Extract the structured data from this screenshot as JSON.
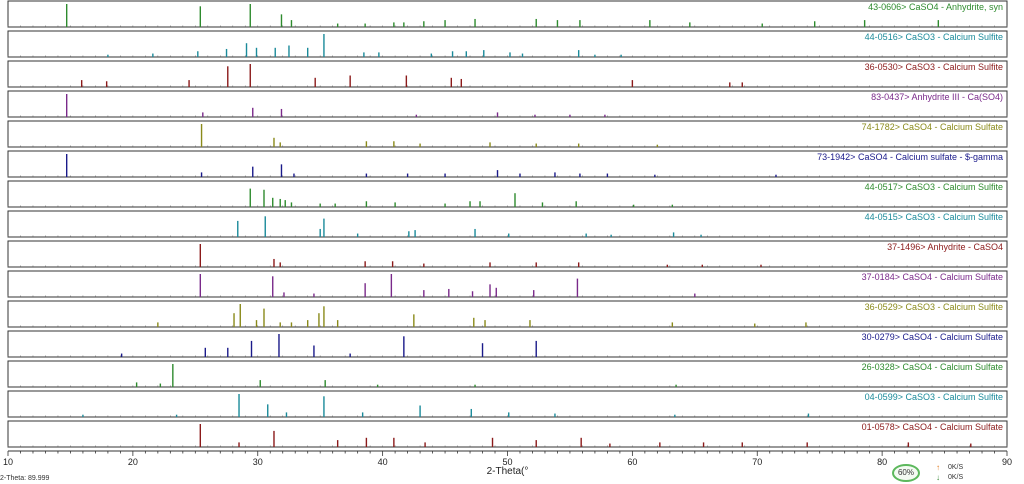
{
  "chart_data": {
    "type": "bar",
    "xlabel": "2-Theta(°",
    "xlim": [
      10,
      90
    ],
    "xticks": [
      10,
      20,
      30,
      40,
      50,
      60,
      70,
      80,
      90
    ],
    "panels": [
      {
        "label": "43-0606> CaSO4 - Anhydrite, syn",
        "color": "#2e8b2e",
        "peaks": [
          [
            14.7,
            1.0
          ],
          [
            25.4,
            0.9
          ],
          [
            29.4,
            1.0
          ],
          [
            31.9,
            0.55
          ],
          [
            32.7,
            0.3
          ],
          [
            36.4,
            0.15
          ],
          [
            38.6,
            0.15
          ],
          [
            40.9,
            0.2
          ],
          [
            41.7,
            0.2
          ],
          [
            43.3,
            0.25
          ],
          [
            45.0,
            0.3
          ],
          [
            47.4,
            0.35
          ],
          [
            52.3,
            0.35
          ],
          [
            54.0,
            0.3
          ],
          [
            55.8,
            0.3
          ],
          [
            61.4,
            0.3
          ],
          [
            64.6,
            0.2
          ],
          [
            70.4,
            0.15
          ],
          [
            74.6,
            0.25
          ],
          [
            78.6,
            0.3
          ],
          [
            84.5,
            0.3
          ]
        ]
      },
      {
        "label": "44-0516> CaSO3 - Calcium Sulfite",
        "color": "#1a8a9a",
        "peaks": [
          [
            18.0,
            0.1
          ],
          [
            21.6,
            0.15
          ],
          [
            25.2,
            0.25
          ],
          [
            27.5,
            0.35
          ],
          [
            29.1,
            0.6
          ],
          [
            29.9,
            0.4
          ],
          [
            31.4,
            0.4
          ],
          [
            32.5,
            0.5
          ],
          [
            34.0,
            0.4
          ],
          [
            35.3,
            1.0
          ],
          [
            38.5,
            0.2
          ],
          [
            39.7,
            0.2
          ],
          [
            43.9,
            0.15
          ],
          [
            45.6,
            0.25
          ],
          [
            46.7,
            0.25
          ],
          [
            48.1,
            0.3
          ],
          [
            50.2,
            0.2
          ],
          [
            51.2,
            0.15
          ],
          [
            55.7,
            0.3
          ],
          [
            57.0,
            0.1
          ],
          [
            59.1,
            0.1
          ]
        ]
      },
      {
        "label": "36-0530> CaSO3 - Calcium Sulfite",
        "color": "#8b1a1a",
        "peaks": [
          [
            15.9,
            0.3
          ],
          [
            17.9,
            0.25
          ],
          [
            24.5,
            0.3
          ],
          [
            27.6,
            0.9
          ],
          [
            29.4,
            1.0
          ],
          [
            34.6,
            0.4
          ],
          [
            37.4,
            0.5
          ],
          [
            41.9,
            0.5
          ],
          [
            45.5,
            0.4
          ],
          [
            46.3,
            0.35
          ],
          [
            60.0,
            0.3
          ],
          [
            67.8,
            0.2
          ],
          [
            68.8,
            0.2
          ]
        ]
      },
      {
        "label": "83-0437> Anhydrite III - Ca(SO4)",
        "color": "#7a2a8a",
        "peaks": [
          [
            14.7,
            1.0
          ],
          [
            25.6,
            0.2
          ],
          [
            29.6,
            0.4
          ],
          [
            31.9,
            0.35
          ],
          [
            42.7,
            0.1
          ],
          [
            49.2,
            0.2
          ],
          [
            52.2,
            0.1
          ],
          [
            55.0,
            0.1
          ],
          [
            57.8,
            0.1
          ]
        ]
      },
      {
        "label": "74-1782> CaSO4 - Calcium Sulfate",
        "color": "#8a8a1a",
        "peaks": [
          [
            25.5,
            1.0
          ],
          [
            31.3,
            0.4
          ],
          [
            31.8,
            0.2
          ],
          [
            38.7,
            0.25
          ],
          [
            40.9,
            0.25
          ],
          [
            43.0,
            0.15
          ],
          [
            48.6,
            0.2
          ],
          [
            52.3,
            0.15
          ],
          [
            55.7,
            0.15
          ],
          [
            62.0,
            0.1
          ]
        ]
      },
      {
        "label": "73-1942> CaSO4 - Calcium sulfate - $-gamma",
        "color": "#1a1a8a",
        "peaks": [
          [
            14.7,
            1.0
          ],
          [
            25.5,
            0.2
          ],
          [
            29.6,
            0.45
          ],
          [
            31.9,
            0.55
          ],
          [
            32.9,
            0.15
          ],
          [
            38.7,
            0.15
          ],
          [
            42.0,
            0.15
          ],
          [
            45.0,
            0.15
          ],
          [
            49.2,
            0.3
          ],
          [
            51.0,
            0.15
          ],
          [
            53.8,
            0.2
          ],
          [
            55.8,
            0.15
          ],
          [
            58.0,
            0.15
          ],
          [
            61.8,
            0.1
          ],
          [
            71.5,
            0.1
          ]
        ]
      },
      {
        "label": "44-0517> CaSO3 - Calcium Sulfite",
        "color": "#2e8b2e",
        "peaks": [
          [
            29.4,
            0.8
          ],
          [
            30.5,
            0.75
          ],
          [
            31.2,
            0.4
          ],
          [
            31.8,
            0.35
          ],
          [
            32.2,
            0.3
          ],
          [
            32.7,
            0.2
          ],
          [
            35.0,
            0.15
          ],
          [
            36.2,
            0.15
          ],
          [
            38.7,
            0.25
          ],
          [
            41.0,
            0.2
          ],
          [
            45.0,
            0.15
          ],
          [
            47.0,
            0.25
          ],
          [
            47.8,
            0.25
          ],
          [
            50.6,
            0.6
          ],
          [
            52.8,
            0.2
          ],
          [
            55.5,
            0.25
          ],
          [
            60.1,
            0.1
          ],
          [
            63.2,
            0.1
          ]
        ]
      },
      {
        "label": "44-0515> CaSO3 - Calcium Sulfite",
        "color": "#1a8a9a",
        "peaks": [
          [
            28.4,
            0.7
          ],
          [
            30.6,
            0.9
          ],
          [
            35.0,
            0.35
          ],
          [
            35.3,
            0.8
          ],
          [
            38.0,
            0.15
          ],
          [
            42.1,
            0.25
          ],
          [
            42.6,
            0.3
          ],
          [
            47.4,
            0.35
          ],
          [
            50.1,
            0.15
          ],
          [
            56.3,
            0.15
          ],
          [
            58.3,
            0.1
          ],
          [
            63.3,
            0.2
          ],
          [
            65.5,
            0.1
          ]
        ]
      },
      {
        "label": "37-1496> Anhydrite - CaSO4",
        "color": "#8b1a1a",
        "peaks": [
          [
            25.4,
            1.0
          ],
          [
            31.3,
            0.35
          ],
          [
            31.8,
            0.2
          ],
          [
            38.6,
            0.25
          ],
          [
            40.8,
            0.25
          ],
          [
            43.3,
            0.15
          ],
          [
            48.6,
            0.2
          ],
          [
            52.3,
            0.2
          ],
          [
            55.7,
            0.2
          ],
          [
            62.8,
            0.1
          ],
          [
            65.6,
            0.1
          ],
          [
            70.3,
            0.1
          ]
        ]
      },
      {
        "label": "37-0184> CaSO4 - Calcium Sulfate",
        "color": "#7a2a8a",
        "peaks": [
          [
            25.4,
            1.0
          ],
          [
            31.2,
            0.9
          ],
          [
            32.1,
            0.2
          ],
          [
            34.5,
            0.15
          ],
          [
            38.6,
            0.6
          ],
          [
            40.7,
            1.0
          ],
          [
            43.3,
            0.3
          ],
          [
            45.3,
            0.35
          ],
          [
            47.2,
            0.25
          ],
          [
            48.6,
            0.55
          ],
          [
            49.1,
            0.4
          ],
          [
            52.1,
            0.3
          ],
          [
            55.6,
            0.8
          ],
          [
            65.0,
            0.15
          ]
        ]
      },
      {
        "label": "36-0529> CaSO3 - Calcium Sulfite",
        "color": "#8a8a1a",
        "peaks": [
          [
            22.0,
            0.2
          ],
          [
            28.1,
            0.6
          ],
          [
            28.6,
            1.0
          ],
          [
            29.9,
            0.3
          ],
          [
            30.5,
            0.8
          ],
          [
            31.8,
            0.2
          ],
          [
            32.7,
            0.2
          ],
          [
            34.0,
            0.3
          ],
          [
            34.9,
            0.6
          ],
          [
            35.3,
            0.9
          ],
          [
            36.4,
            0.3
          ],
          [
            42.5,
            0.55
          ],
          [
            47.3,
            0.4
          ],
          [
            48.2,
            0.3
          ],
          [
            51.8,
            0.3
          ],
          [
            63.2,
            0.2
          ],
          [
            69.8,
            0.15
          ],
          [
            73.9,
            0.2
          ]
        ]
      },
      {
        "label": "30-0279> CaSO4 - Calcium Sulfate",
        "color": "#1a1a8a",
        "peaks": [
          [
            19.1,
            0.15
          ],
          [
            25.8,
            0.4
          ],
          [
            27.6,
            0.4
          ],
          [
            29.5,
            0.7
          ],
          [
            31.7,
            1.0
          ],
          [
            34.5,
            0.5
          ],
          [
            37.4,
            0.15
          ],
          [
            41.7,
            0.9
          ],
          [
            48.0,
            0.6
          ],
          [
            52.3,
            0.7
          ]
        ]
      },
      {
        "label": "26-0328> CaSO4 - Calcium Sulfate",
        "color": "#2e8b2e",
        "peaks": [
          [
            20.3,
            0.2
          ],
          [
            22.2,
            0.15
          ],
          [
            23.2,
            1.0
          ],
          [
            30.2,
            0.3
          ],
          [
            35.4,
            0.3
          ],
          [
            39.6,
            0.1
          ],
          [
            47.4,
            0.1
          ],
          [
            63.5,
            0.1
          ]
        ]
      },
      {
        "label": "04-0599> CaSO3 - Calcium Sulfite",
        "color": "#1a8a9a",
        "peaks": [
          [
            16.0,
            0.1
          ],
          [
            23.5,
            0.1
          ],
          [
            28.5,
            1.0
          ],
          [
            30.8,
            0.55
          ],
          [
            32.3,
            0.2
          ],
          [
            35.3,
            0.9
          ],
          [
            38.4,
            0.2
          ],
          [
            43.0,
            0.5
          ],
          [
            47.1,
            0.35
          ],
          [
            50.1,
            0.2
          ],
          [
            53.8,
            0.15
          ],
          [
            63.4,
            0.1
          ],
          [
            74.1,
            0.15
          ]
        ]
      },
      {
        "label": "01-0578> CaSO4 - Calcium Sulfate",
        "color": "#8b1a1a",
        "peaks": [
          [
            25.4,
            1.0
          ],
          [
            28.5,
            0.2
          ],
          [
            31.3,
            0.7
          ],
          [
            36.4,
            0.3
          ],
          [
            38.7,
            0.4
          ],
          [
            40.9,
            0.4
          ],
          [
            43.4,
            0.2
          ],
          [
            48.8,
            0.4
          ],
          [
            52.3,
            0.3
          ],
          [
            55.9,
            0.4
          ],
          [
            58.2,
            0.15
          ],
          [
            62.2,
            0.2
          ],
          [
            65.7,
            0.2
          ],
          [
            68.8,
            0.2
          ],
          [
            74.0,
            0.2
          ],
          [
            82.1,
            0.2
          ],
          [
            87.1,
            0.15
          ]
        ]
      }
    ]
  },
  "status": {
    "percent": "60%",
    "upload_rate": "0K/S",
    "download_rate": "0K/S",
    "up_icon": "up-arrow-icon",
    "down_icon": "down-arrow-icon"
  },
  "corner_text": "2-Theta: 89.999"
}
